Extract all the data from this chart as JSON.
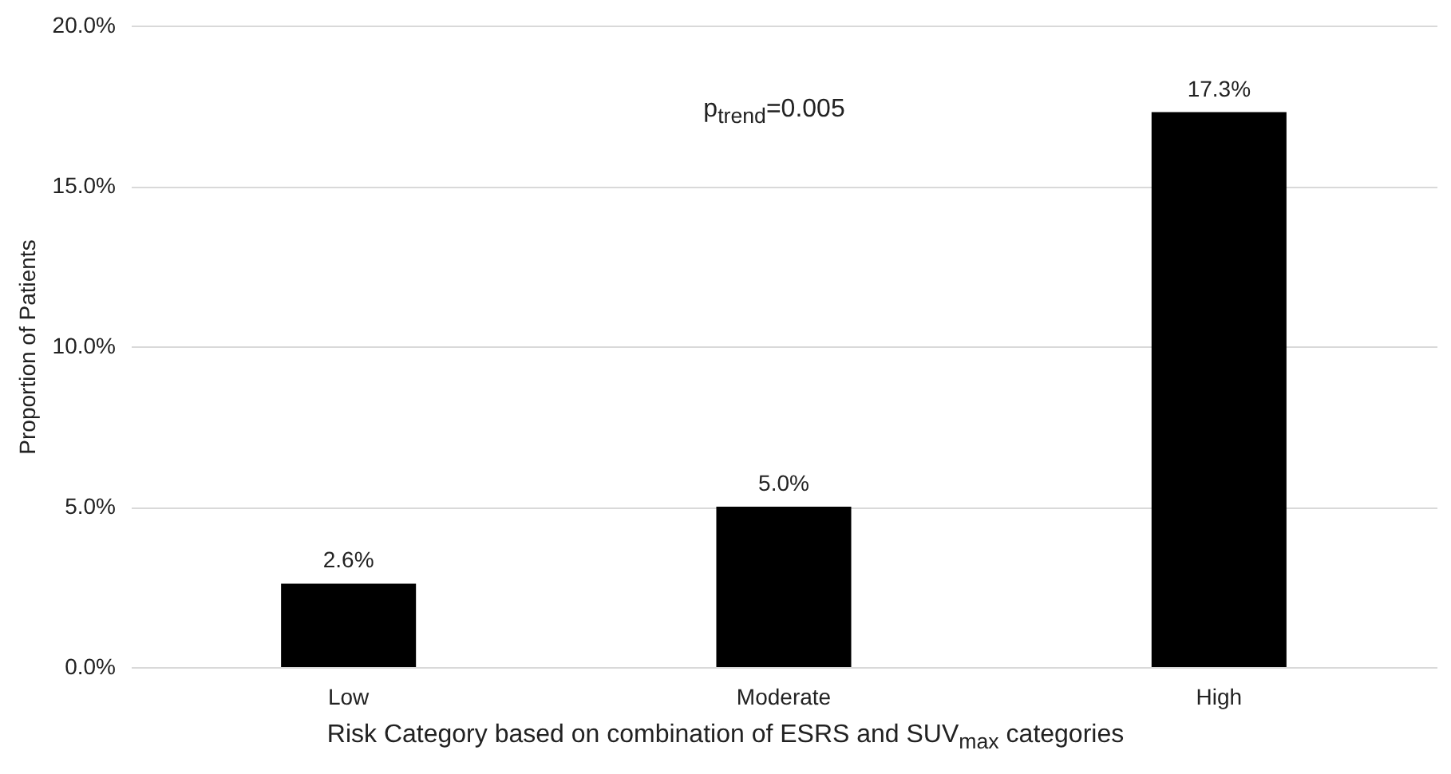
{
  "chart_data": {
    "type": "bar",
    "categories": [
      "Low",
      "Moderate",
      "High"
    ],
    "values": [
      2.6,
      5.0,
      17.3
    ],
    "value_labels": [
      "2.6%",
      "5.0%",
      "17.3%"
    ],
    "color": "#000000",
    "ylabel": "Proportion of Patients",
    "xlabel": "Risk Category based on combination of ESRS and SUV$_{max}$ categories",
    "annotations": [
      "p$_{trend}$=0.005"
    ],
    "ylim": [
      0,
      20
    ],
    "yticks": [
      {
        "value": 0,
        "label": "0.0%"
      },
      {
        "value": 5,
        "label": "5.0%"
      },
      {
        "value": 10,
        "label": "10.0%"
      },
      {
        "value": 15,
        "label": "15.0%"
      },
      {
        "value": 20,
        "label": "20.0%"
      }
    ],
    "grid": "y"
  }
}
